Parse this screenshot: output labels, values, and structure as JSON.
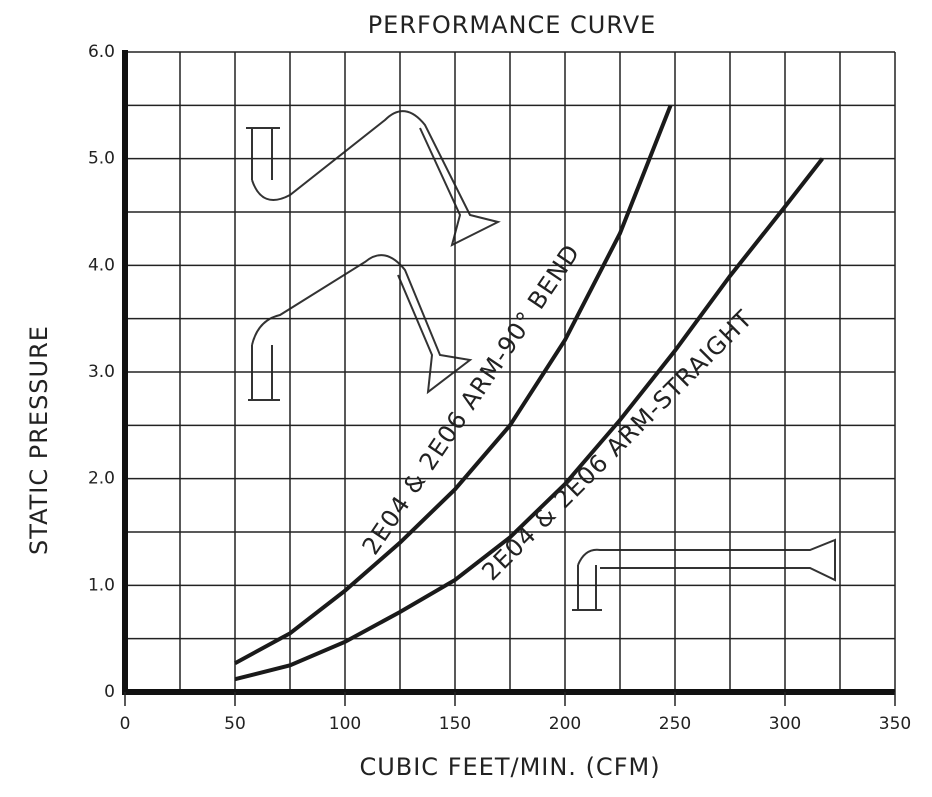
{
  "chart_data": {
    "type": "line",
    "title": "PERFORMANCE CURVE",
    "x_label": "CUBIC FEET/MIN. (CFM)",
    "y_label": "STATIC PRESSURE",
    "xlim": [
      0,
      350
    ],
    "ylim": [
      0,
      6
    ],
    "xticks": [
      0,
      50,
      100,
      150,
      200,
      250,
      300,
      350
    ],
    "yticks": [
      0,
      {
        "value": 1,
        "label": "1.0"
      },
      {
        "value": 2,
        "label": "2.0"
      },
      {
        "value": 3,
        "label": "3.0"
      },
      {
        "value": 4,
        "label": "4.0"
      },
      {
        "value": 5,
        "label": "5.0"
      },
      {
        "value": 6,
        "label": "6.0"
      }
    ],
    "xgrid": [
      0,
      25,
      50,
      75,
      100,
      125,
      150,
      175,
      200,
      225,
      250,
      275,
      300,
      325,
      350
    ],
    "ygrid": [
      0,
      0.5,
      1,
      1.5,
      2,
      2.5,
      3,
      3.5,
      4,
      4.5,
      5,
      5.5,
      6
    ],
    "grid": true,
    "series": [
      {
        "name": "2E04 & 2E06 ARM-90° BEND",
        "color": "#1a1a1a",
        "x": [
          50,
          75,
          100,
          125,
          150,
          175,
          200,
          225,
          248
        ],
        "values": [
          0.27,
          0.55,
          0.95,
          1.4,
          1.9,
          2.5,
          3.3,
          4.3,
          5.5
        ]
      },
      {
        "name": "2E04 & 2E06 ARM-STRAIGHT",
        "color": "#1a1a1a",
        "x": [
          50,
          75,
          100,
          125,
          150,
          175,
          200,
          225,
          250,
          275,
          300,
          317
        ],
        "values": [
          0.12,
          0.25,
          0.47,
          0.75,
          1.05,
          1.45,
          1.95,
          2.55,
          3.2,
          3.9,
          4.55,
          5.0
        ]
      }
    ]
  }
}
